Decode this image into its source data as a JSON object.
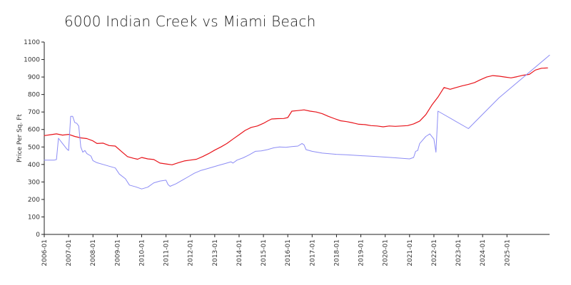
{
  "chart_data": {
    "type": "line",
    "title": "6000 Indian Creek vs Miami Beach",
    "xlabel": "",
    "ylabel": "Price Per Sq. Ft",
    "ylim": [
      0,
      1100
    ],
    "y_ticks": [
      0,
      100,
      200,
      300,
      400,
      500,
      600,
      700,
      800,
      900,
      1000,
      1100
    ],
    "x_ticks": [
      "2006-01",
      "2007-01",
      "2008-01",
      "2009-01",
      "2010-01",
      "2011-01",
      "2012-01",
      "2013-01",
      "2014-01",
      "2015-01",
      "2016-01",
      "2017-01",
      "2018-01",
      "2019-01",
      "2020-01",
      "2021-01",
      "2022-01",
      "2023-01",
      "2024-01",
      "2025-01"
    ],
    "xlim": [
      "2006-01",
      "2026-10"
    ],
    "grid": false,
    "legend": "none",
    "series": [
      {
        "color": "#e8141b",
        "points": [
          [
            "2006-01",
            565
          ],
          [
            "2006-04",
            570
          ],
          [
            "2006-07",
            575
          ],
          [
            "2006-10",
            568
          ],
          [
            "2007-01",
            572
          ],
          [
            "2007-04",
            560
          ],
          [
            "2007-07",
            552
          ],
          [
            "2007-10",
            548
          ],
          [
            "2008-01",
            535
          ],
          [
            "2008-03",
            520
          ],
          [
            "2008-06",
            522
          ],
          [
            "2008-09",
            508
          ],
          [
            "2008-12",
            505
          ],
          [
            "2009-03",
            475
          ],
          [
            "2009-06",
            445
          ],
          [
            "2009-09",
            435
          ],
          [
            "2009-11",
            430
          ],
          [
            "2010-01",
            440
          ],
          [
            "2010-04",
            432
          ],
          [
            "2010-07",
            428
          ],
          [
            "2010-10",
            408
          ],
          [
            "2011-01",
            403
          ],
          [
            "2011-04",
            398
          ],
          [
            "2011-07",
            410
          ],
          [
            "2011-10",
            420
          ],
          [
            "2012-01",
            425
          ],
          [
            "2012-04",
            430
          ],
          [
            "2012-07",
            445
          ],
          [
            "2012-10",
            462
          ],
          [
            "2013-01",
            482
          ],
          [
            "2013-04",
            500
          ],
          [
            "2013-07",
            520
          ],
          [
            "2013-10",
            545
          ],
          [
            "2014-01",
            570
          ],
          [
            "2014-04",
            595
          ],
          [
            "2014-07",
            612
          ],
          [
            "2014-10",
            620
          ],
          [
            "2015-01",
            635
          ],
          [
            "2015-03",
            648
          ],
          [
            "2015-05",
            660
          ],
          [
            "2015-08",
            662
          ],
          [
            "2015-11",
            663
          ],
          [
            "2016-01",
            668
          ],
          [
            "2016-03",
            705
          ],
          [
            "2016-06",
            708
          ],
          [
            "2016-09",
            712
          ],
          [
            "2016-12",
            705
          ],
          [
            "2017-03",
            700
          ],
          [
            "2017-06",
            690
          ],
          [
            "2017-09",
            675
          ],
          [
            "2017-12",
            662
          ],
          [
            "2018-03",
            650
          ],
          [
            "2018-06",
            645
          ],
          [
            "2018-09",
            638
          ],
          [
            "2018-12",
            630
          ],
          [
            "2019-03",
            628
          ],
          [
            "2019-06",
            622
          ],
          [
            "2019-09",
            620
          ],
          [
            "2019-12",
            615
          ],
          [
            "2020-03",
            620
          ],
          [
            "2020-06",
            618
          ],
          [
            "2020-09",
            620
          ],
          [
            "2020-12",
            622
          ],
          [
            "2021-03",
            632
          ],
          [
            "2021-06",
            648
          ],
          [
            "2021-09",
            685
          ],
          [
            "2021-12",
            740
          ],
          [
            "2022-03",
            785
          ],
          [
            "2022-06",
            840
          ],
          [
            "2022-09",
            830
          ],
          [
            "2022-12",
            840
          ],
          [
            "2023-03",
            850
          ],
          [
            "2023-06",
            858
          ],
          [
            "2023-09",
            868
          ],
          [
            "2023-12",
            885
          ],
          [
            "2024-03",
            900
          ],
          [
            "2024-06",
            908
          ],
          [
            "2024-09",
            905
          ],
          [
            "2024-12",
            900
          ],
          [
            "2025-03",
            895
          ],
          [
            "2025-06",
            902
          ],
          [
            "2025-09",
            910
          ],
          [
            "2025-12",
            915
          ],
          [
            "2026-03",
            940
          ],
          [
            "2026-06",
            950
          ],
          [
            "2026-09",
            952
          ]
        ]
      },
      {
        "color": "#8c8cf5",
        "points": [
          [
            "2006-01",
            425
          ],
          [
            "2006-06",
            425
          ],
          [
            "2006-07",
            428
          ],
          [
            "2006-08",
            550
          ],
          [
            "2006-10",
            520
          ],
          [
            "2006-12",
            490
          ],
          [
            "2007-01",
            480
          ],
          [
            "2007-02",
            675
          ],
          [
            "2007-03",
            675
          ],
          [
            "2007-04",
            640
          ],
          [
            "2007-05",
            635
          ],
          [
            "2007-06",
            620
          ],
          [
            "2007-07",
            500
          ],
          [
            "2007-08",
            470
          ],
          [
            "2007-09",
            480
          ],
          [
            "2007-10",
            462
          ],
          [
            "2007-12",
            448
          ],
          [
            "2008-01",
            422
          ],
          [
            "2008-03",
            410
          ],
          [
            "2008-06",
            400
          ],
          [
            "2008-09",
            390
          ],
          [
            "2008-12",
            380
          ],
          [
            "2009-02",
            345
          ],
          [
            "2009-05",
            318
          ],
          [
            "2009-07",
            282
          ],
          [
            "2009-10",
            272
          ],
          [
            "2010-01",
            260
          ],
          [
            "2010-04",
            270
          ],
          [
            "2010-07",
            295
          ],
          [
            "2010-10",
            305
          ],
          [
            "2011-01",
            310
          ],
          [
            "2011-02",
            285
          ],
          [
            "2011-03",
            275
          ],
          [
            "2011-06",
            290
          ],
          [
            "2011-09",
            310
          ],
          [
            "2011-12",
            330
          ],
          [
            "2012-03",
            350
          ],
          [
            "2012-06",
            365
          ],
          [
            "2012-09",
            375
          ],
          [
            "2012-12",
            385
          ],
          [
            "2013-03",
            395
          ],
          [
            "2013-06",
            405
          ],
          [
            "2013-09",
            415
          ],
          [
            "2013-10",
            408
          ],
          [
            "2013-12",
            425
          ],
          [
            "2014-03",
            438
          ],
          [
            "2014-06",
            455
          ],
          [
            "2014-09",
            475
          ],
          [
            "2014-12",
            478
          ],
          [
            "2015-03",
            485
          ],
          [
            "2015-06",
            495
          ],
          [
            "2015-09",
            500
          ],
          [
            "2015-12",
            498
          ],
          [
            "2016-03",
            502
          ],
          [
            "2016-06",
            505
          ],
          [
            "2016-08",
            520
          ],
          [
            "2016-09",
            512
          ],
          [
            "2016-10",
            485
          ],
          [
            "2017-01",
            475
          ],
          [
            "2017-06",
            465
          ],
          [
            "2018-01",
            458
          ],
          [
            "2018-06",
            455
          ],
          [
            "2019-01",
            450
          ],
          [
            "2019-06",
            447
          ],
          [
            "2020-01",
            442
          ],
          [
            "2020-06",
            438
          ],
          [
            "2021-01",
            432
          ],
          [
            "2021-03",
            440
          ],
          [
            "2021-04",
            475
          ],
          [
            "2021-05",
            480
          ],
          [
            "2021-06",
            520
          ],
          [
            "2021-09",
            560
          ],
          [
            "2021-11",
            575
          ],
          [
            "2022-01",
            545
          ],
          [
            "2022-02",
            470
          ],
          [
            "2022-03",
            705
          ],
          [
            "2023-06",
            605
          ],
          [
            "2024-09",
            780
          ],
          [
            "2026-10",
            1025
          ]
        ]
      }
    ]
  }
}
